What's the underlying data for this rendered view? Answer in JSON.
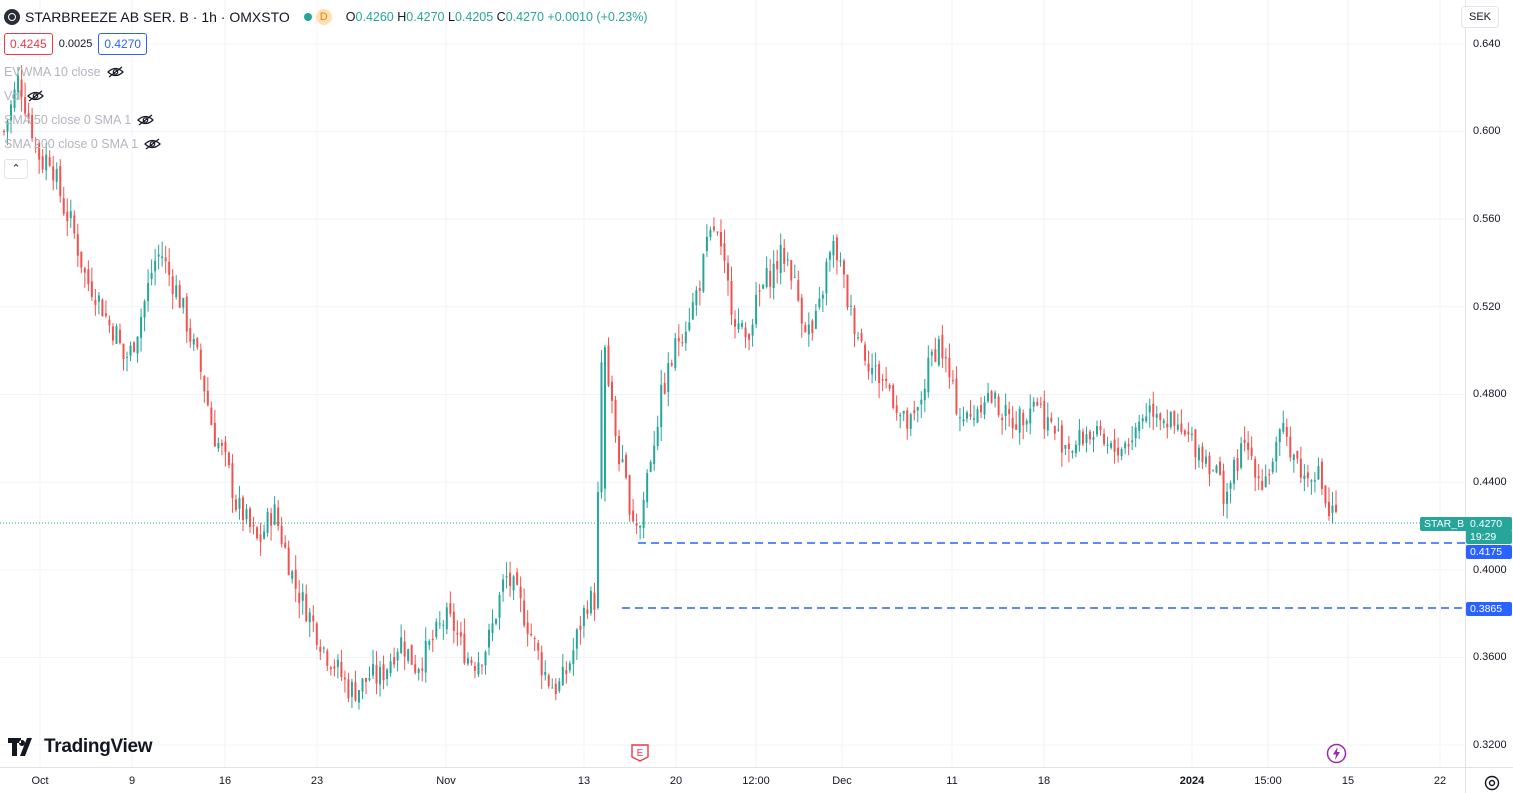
{
  "header": {
    "symbol": "STARBREEZE AB SER. B · 1h · OMXSTO",
    "badge": "D",
    "ohlc": {
      "o_label": "O",
      "o": "0.4260",
      "h_label": "H",
      "h": "0.4270",
      "l_label": "L",
      "l": "0.4205",
      "c_label": "C",
      "c": "0.4270",
      "change": "+0.0010 (+0.23%)"
    }
  },
  "trade": {
    "sell": "0.4245",
    "spread": "0.0025",
    "buy": "0.4270"
  },
  "indicators": [
    "EVWMA 10 close",
    "Vol",
    "SMA 50 close 0 SMA 1",
    "SMA 200 close 0 SMA 1"
  ],
  "currency": "SEK",
  "collapse_glyph": "⌃",
  "logo_text": "TradingView",
  "earnings_glyph": "E",
  "price_flags": {
    "symbol_tag": "STAR_B",
    "last": "0.4270",
    "countdown": "19:29",
    "line1": "0.4175",
    "line2": "0.3865"
  },
  "colors": {
    "up": "#26a69a",
    "down": "#ef5350",
    "line": "#2962ff",
    "grid": "#f0f3fa"
  },
  "chart_data": {
    "type": "candlestick",
    "ylim": [
      0.31,
      0.66
    ],
    "yticks": [
      "0.640",
      "0.600",
      "0.560",
      "0.520",
      "0.4800",
      "0.4400",
      "0.4000",
      "0.3600",
      "0.3200"
    ],
    "xticks": [
      "Oct",
      "9",
      "16",
      "23",
      "Nov",
      "13",
      "20",
      "12:00",
      "Dec",
      "11",
      "18",
      "2024",
      "15:00",
      "15",
      "22"
    ],
    "close_series": [
      0.6,
      0.612,
      0.625,
      0.61,
      0.598,
      0.585,
      0.59,
      0.578,
      0.565,
      0.558,
      0.545,
      0.532,
      0.528,
      0.521,
      0.512,
      0.508,
      0.496,
      0.5,
      0.512,
      0.525,
      0.54,
      0.545,
      0.535,
      0.528,
      0.518,
      0.505,
      0.495,
      0.48,
      0.462,
      0.455,
      0.445,
      0.43,
      0.425,
      0.418,
      0.412,
      0.42,
      0.428,
      0.416,
      0.404,
      0.392,
      0.385,
      0.378,
      0.37,
      0.362,
      0.358,
      0.352,
      0.346,
      0.345,
      0.348,
      0.352,
      0.35,
      0.355,
      0.362,
      0.368,
      0.362,
      0.356,
      0.36,
      0.366,
      0.372,
      0.378,
      0.375,
      0.366,
      0.36,
      0.358,
      0.362,
      0.37,
      0.384,
      0.397,
      0.392,
      0.384,
      0.375,
      0.365,
      0.355,
      0.348,
      0.346,
      0.352,
      0.362,
      0.375,
      0.386,
      0.386,
      0.51,
      0.48,
      0.455,
      0.44,
      0.425,
      0.42,
      0.445,
      0.462,
      0.482,
      0.492,
      0.505,
      0.512,
      0.52,
      0.532,
      0.548,
      0.557,
      0.54,
      0.525,
      0.512,
      0.505,
      0.515,
      0.526,
      0.533,
      0.538,
      0.544,
      0.54,
      0.525,
      0.513,
      0.507,
      0.52,
      0.54,
      0.548,
      0.535,
      0.518,
      0.51,
      0.5,
      0.492,
      0.488,
      0.485,
      0.478,
      0.468,
      0.465,
      0.47,
      0.485,
      0.498,
      0.504,
      0.492,
      0.478,
      0.47,
      0.468,
      0.474,
      0.48,
      0.478,
      0.474,
      0.469,
      0.468,
      0.47,
      0.476,
      0.478,
      0.47,
      0.465,
      0.46,
      0.458,
      0.456,
      0.46,
      0.463,
      0.46,
      0.456,
      0.454,
      0.456,
      0.458,
      0.462,
      0.47,
      0.474,
      0.474,
      0.47,
      0.466,
      0.462,
      0.46,
      0.458,
      0.454,
      0.45,
      0.445,
      0.435,
      0.44,
      0.452,
      0.456,
      0.45,
      0.44,
      0.445,
      0.455,
      0.462,
      0.456,
      0.448,
      0.44,
      0.448,
      0.44,
      0.425,
      0.427
    ]
  }
}
